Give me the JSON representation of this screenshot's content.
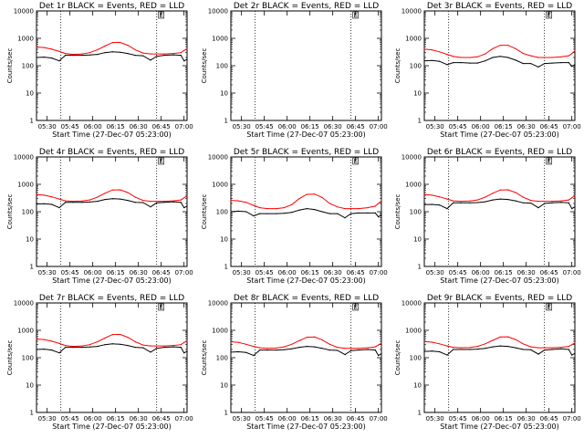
{
  "ylabel": "Counts/sec",
  "xlabel": "Start Time (27-Dec-07 05:23:00)",
  "x_tick_labels": [
    "05:30",
    "05:45",
    "06:00",
    "06:15",
    "06:30",
    "06:45",
    "07:00"
  ],
  "y_tick_labels": [
    "1",
    "10",
    "100",
    "1000",
    "10000"
  ],
  "dotted_lines_at": [
    "05:39",
    "06:42"
  ],
  "flag_label": "E",
  "colors": {
    "events": "#000000",
    "lld": "#ff0000",
    "background": "#ffffff"
  },
  "chart_data": [
    {
      "type": "line",
      "title": "Det 1r BLACK = Events, RED = LLD",
      "y_scale": "log",
      "ylim": [
        1,
        10000
      ],
      "xlim": [
        "05:23",
        "07:02"
      ],
      "x": [
        "05:23",
        "05:28",
        "05:33",
        "05:38",
        "05:42",
        "05:47",
        "05:53",
        "05:58",
        "06:03",
        "06:08",
        "06:13",
        "06:18",
        "06:23",
        "06:28",
        "06:33",
        "06:38",
        "06:42",
        "06:47",
        "06:53",
        "06:58",
        "07:00",
        "07:02"
      ],
      "series": [
        {
          "name": "Events",
          "color": "#000000",
          "values": [
            200,
            205,
            190,
            150,
            240,
            240,
            240,
            245,
            260,
            300,
            320,
            310,
            280,
            240,
            230,
            160,
            220,
            240,
            250,
            240,
            150,
            170
          ]
        },
        {
          "name": "LLD",
          "color": "#ff0000",
          "values": [
            480,
            460,
            400,
            330,
            280,
            260,
            270,
            300,
            380,
            520,
            700,
            710,
            560,
            380,
            290,
            270,
            270,
            270,
            280,
            300,
            360,
            400
          ]
        }
      ]
    },
    {
      "type": "line",
      "title": "Det 2r BLACK = Events, RED = LLD",
      "y_scale": "log",
      "ylim": [
        1,
        10000
      ],
      "xlim": [
        "05:23",
        "07:02"
      ],
      "x": [],
      "series": []
    },
    {
      "type": "line",
      "title": "Det 3r BLACK = Events, RED = LLD",
      "y_scale": "log",
      "ylim": [
        1,
        10000
      ],
      "xlim": [
        "05:23",
        "07:02"
      ],
      "x": [
        "05:23",
        "05:28",
        "05:33",
        "05:38",
        "05:42",
        "05:47",
        "05:53",
        "05:58",
        "06:03",
        "06:08",
        "06:13",
        "06:18",
        "06:23",
        "06:28",
        "06:33",
        "06:38",
        "06:42",
        "06:47",
        "06:53",
        "06:58",
        "07:00",
        "07:02"
      ],
      "series": [
        {
          "name": "Events",
          "color": "#000000",
          "values": [
            150,
            155,
            145,
            110,
            130,
            130,
            125,
            125,
            150,
            200,
            220,
            200,
            160,
            120,
            120,
            90,
            120,
            125,
            130,
            130,
            95,
            110
          ]
        },
        {
          "name": "LLD",
          "color": "#ff0000",
          "values": [
            400,
            380,
            320,
            260,
            220,
            200,
            200,
            210,
            270,
            420,
            560,
            560,
            420,
            280,
            230,
            200,
            200,
            200,
            210,
            230,
            280,
            350
          ]
        }
      ]
    },
    {
      "type": "line",
      "title": "Det 4r BLACK = Events, RED = LLD",
      "y_scale": "log",
      "ylim": [
        1,
        10000
      ],
      "xlim": [
        "05:23",
        "07:02"
      ],
      "x": [
        "05:23",
        "05:28",
        "05:33",
        "05:38",
        "05:42",
        "05:47",
        "05:53",
        "05:58",
        "06:03",
        "06:08",
        "06:13",
        "06:18",
        "06:23",
        "06:28",
        "06:33",
        "06:38",
        "06:42",
        "06:47",
        "06:53",
        "06:58",
        "07:00",
        "07:02"
      ],
      "series": [
        {
          "name": "Events",
          "color": "#000000",
          "values": [
            190,
            195,
            185,
            140,
            220,
            220,
            220,
            225,
            240,
            280,
            300,
            290,
            260,
            220,
            215,
            150,
            210,
            220,
            230,
            220,
            140,
            160
          ]
        },
        {
          "name": "LLD",
          "color": "#ff0000",
          "values": [
            420,
            400,
            350,
            290,
            250,
            240,
            245,
            270,
            340,
            470,
            620,
            630,
            500,
            340,
            260,
            240,
            240,
            240,
            250,
            270,
            320,
            380
          ]
        }
      ]
    },
    {
      "type": "line",
      "title": "Det 5r BLACK = Events, RED = LLD",
      "y_scale": "log",
      "ylim": [
        1,
        10000
      ],
      "xlim": [
        "05:23",
        "07:02"
      ],
      "x": [
        "05:23",
        "05:28",
        "05:33",
        "05:38",
        "05:42",
        "05:47",
        "05:53",
        "05:58",
        "06:03",
        "06:08",
        "06:13",
        "06:18",
        "06:23",
        "06:28",
        "06:33",
        "06:38",
        "06:42",
        "06:47",
        "06:53",
        "06:58",
        "07:00",
        "07:02"
      ],
      "series": [
        {
          "name": "Events",
          "color": "#000000",
          "values": [
            100,
            105,
            100,
            70,
            85,
            85,
            85,
            88,
            95,
            115,
            130,
            120,
            100,
            85,
            85,
            60,
            85,
            90,
            90,
            90,
            65,
            75
          ]
        },
        {
          "name": "LLD",
          "color": "#ff0000",
          "values": [
            260,
            250,
            220,
            170,
            140,
            130,
            130,
            140,
            180,
            300,
            430,
            440,
            330,
            200,
            150,
            130,
            130,
            130,
            140,
            160,
            200,
            250
          ]
        }
      ]
    },
    {
      "type": "line",
      "title": "Det 6r BLACK = Events, RED = LLD",
      "y_scale": "log",
      "ylim": [
        1,
        10000
      ],
      "xlim": [
        "05:23",
        "07:02"
      ],
      "x": [
        "05:23",
        "05:28",
        "05:33",
        "05:38",
        "05:42",
        "05:47",
        "05:53",
        "05:58",
        "06:03",
        "06:08",
        "06:13",
        "06:18",
        "06:23",
        "06:28",
        "06:33",
        "06:38",
        "06:42",
        "06:47",
        "06:53",
        "06:58",
        "07:00",
        "07:02"
      ],
      "series": [
        {
          "name": "Events",
          "color": "#000000",
          "values": [
            180,
            185,
            175,
            130,
            210,
            210,
            210,
            215,
            230,
            270,
            290,
            280,
            250,
            210,
            205,
            140,
            200,
            210,
            220,
            210,
            130,
            150
          ]
        },
        {
          "name": "LLD",
          "color": "#ff0000",
          "values": [
            420,
            400,
            350,
            290,
            250,
            240,
            245,
            270,
            340,
            470,
            620,
            630,
            500,
            340,
            260,
            240,
            240,
            240,
            250,
            270,
            320,
            380
          ]
        }
      ]
    },
    {
      "type": "line",
      "title": "Det 7r BLACK = Events, RED = LLD",
      "y_scale": "log",
      "ylim": [
        1,
        10000
      ],
      "xlim": [
        "05:23",
        "07:02"
      ],
      "x": [
        "05:23",
        "05:28",
        "05:33",
        "05:38",
        "05:42",
        "05:47",
        "05:53",
        "05:58",
        "06:03",
        "06:08",
        "06:13",
        "06:18",
        "06:23",
        "06:28",
        "06:33",
        "06:38",
        "06:42",
        "06:47",
        "06:53",
        "06:58",
        "07:00",
        "07:02"
      ],
      "series": [
        {
          "name": "Events",
          "color": "#000000",
          "values": [
            200,
            205,
            190,
            150,
            240,
            240,
            240,
            245,
            260,
            300,
            320,
            310,
            280,
            240,
            230,
            160,
            220,
            240,
            250,
            240,
            150,
            170
          ]
        },
        {
          "name": "LLD",
          "color": "#ff0000",
          "values": [
            480,
            460,
            400,
            330,
            280,
            260,
            270,
            300,
            380,
            520,
            700,
            710,
            560,
            380,
            290,
            270,
            270,
            270,
            280,
            300,
            360,
            400
          ]
        }
      ]
    },
    {
      "type": "line",
      "title": "Det 8r BLACK = Events, RED = LLD",
      "y_scale": "log",
      "ylim": [
        1,
        10000
      ],
      "xlim": [
        "05:23",
        "07:02"
      ],
      "x": [
        "05:23",
        "05:28",
        "05:33",
        "05:38",
        "05:42",
        "05:47",
        "05:53",
        "05:58",
        "06:03",
        "06:08",
        "06:13",
        "06:18",
        "06:23",
        "06:28",
        "06:33",
        "06:38",
        "06:42",
        "06:47",
        "06:53",
        "06:58",
        "07:00",
        "07:02"
      ],
      "series": [
        {
          "name": "Events",
          "color": "#000000",
          "values": [
            160,
            165,
            155,
            120,
            190,
            190,
            190,
            195,
            210,
            240,
            260,
            250,
            220,
            190,
            185,
            130,
            180,
            190,
            200,
            190,
            120,
            140
          ]
        },
        {
          "name": "LLD",
          "color": "#ff0000",
          "values": [
            380,
            360,
            310,
            260,
            230,
            220,
            225,
            250,
            310,
            420,
            560,
            570,
            450,
            310,
            240,
            220,
            220,
            220,
            230,
            250,
            290,
            340
          ]
        }
      ]
    },
    {
      "type": "line",
      "title": "Det 9r BLACK = Events, RED = LLD",
      "y_scale": "log",
      "ylim": [
        1,
        10000
      ],
      "xlim": [
        "05:23",
        "07:02"
      ],
      "x": [
        "05:23",
        "05:28",
        "05:33",
        "05:38",
        "05:42",
        "05:47",
        "05:53",
        "05:58",
        "06:03",
        "06:08",
        "06:13",
        "06:18",
        "06:23",
        "06:28",
        "06:33",
        "06:38",
        "06:42",
        "06:47",
        "06:53",
        "06:58",
        "07:00",
        "07:02"
      ],
      "series": [
        {
          "name": "Events",
          "color": "#000000",
          "values": [
            170,
            175,
            165,
            125,
            200,
            200,
            200,
            205,
            220,
            250,
            270,
            260,
            230,
            200,
            195,
            135,
            190,
            200,
            210,
            200,
            125,
            145
          ]
        },
        {
          "name": "LLD",
          "color": "#ff0000",
          "values": [
            390,
            370,
            320,
            270,
            240,
            230,
            235,
            260,
            320,
            430,
            570,
            580,
            460,
            320,
            250,
            230,
            230,
            230,
            240,
            260,
            300,
            350
          ]
        }
      ]
    }
  ]
}
